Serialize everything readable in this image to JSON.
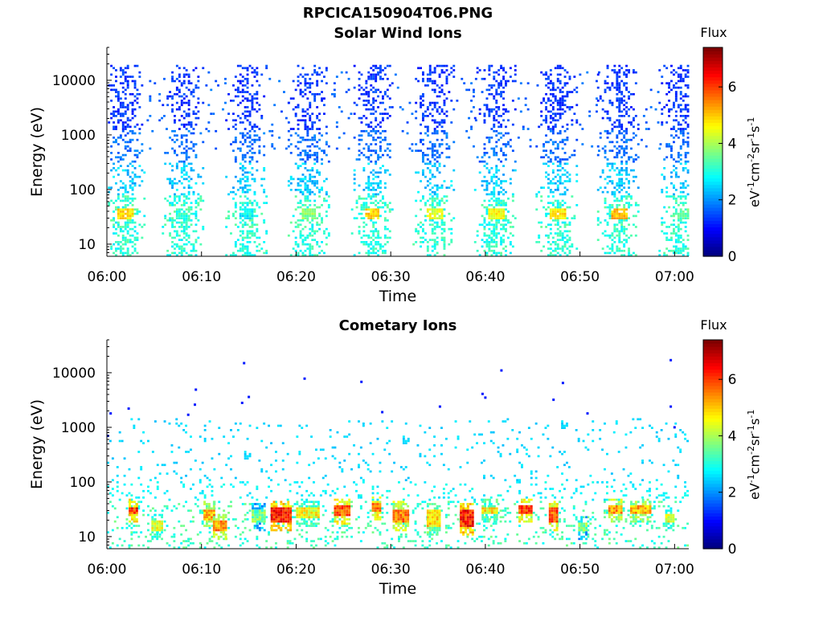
{
  "figure": {
    "title": "RPCICA150904T06.PNG",
    "colorbar": {
      "label": "Flux",
      "unit_parts": [
        "eV",
        "-1",
        "cm",
        "-2",
        "sr",
        "-1",
        "s",
        "-1"
      ],
      "ticks": [
        "0",
        "2",
        "4",
        "6"
      ],
      "range": [
        0,
        7.4
      ],
      "colormap": "jet"
    }
  },
  "chart_data": [
    {
      "type": "heatmap",
      "title": "Solar Wind Ions",
      "xlabel": "Time",
      "ylabel": "Energy (eV)",
      "x_ticks": [
        "06:00",
        "06:10",
        "06:20",
        "06:30",
        "06:40",
        "06:50",
        "07:00"
      ],
      "x_range_minutes": [
        0,
        61.5
      ],
      "y_scale": "log",
      "y_ticks": [
        "10",
        "100",
        "1000",
        "10000"
      ],
      "y_range": [
        6,
        40000
      ],
      "scan_centers_minutes": [
        1.8,
        8.0,
        14.7,
        21.3,
        28.0,
        34.5,
        41.0,
        47.5,
        54.0,
        60.5
      ],
      "band_energies_ev": [
        35,
        40
      ],
      "band_peak_flux": [
        5.2,
        3.5,
        3.2,
        4.2,
        5.3,
        4.8,
        5.0,
        5.2,
        5.5,
        3.8
      ],
      "high_energy_range_ev": [
        300,
        20000
      ]
    },
    {
      "type": "heatmap",
      "title": "Cometary Ions",
      "xlabel": "Time",
      "ylabel": "Energy (eV)",
      "x_ticks": [
        "06:00",
        "06:10",
        "06:20",
        "06:30",
        "06:40",
        "06:50",
        "07:00"
      ],
      "x_range_minutes": [
        0,
        61.5
      ],
      "y_scale": "log",
      "y_ticks": [
        "10",
        "100",
        "1000",
        "10000"
      ],
      "y_range": [
        6,
        40000
      ],
      "bursts": [
        {
          "t": [
            2.3,
            3.3
          ],
          "e": [
            25,
            35
          ],
          "peak": 6.8
        },
        {
          "t": [
            4.7,
            5.8
          ],
          "e": [
            12,
            19
          ],
          "peak": 5.0
        },
        {
          "t": [
            10.2,
            11.3
          ],
          "e": [
            19,
            32
          ],
          "peak": 5.8
        },
        {
          "t": [
            11.2,
            12.5
          ],
          "e": [
            12,
            19
          ],
          "peak": 6.0
        },
        {
          "t": [
            15.3,
            16.7
          ],
          "e": [
            18,
            30
          ],
          "peak": 4.2
        },
        {
          "t": [
            17.3,
            19.4
          ],
          "e": [
            18,
            33
          ],
          "peak": 6.9
        },
        {
          "t": [
            20.0,
            22.5
          ],
          "e": [
            22,
            34
          ],
          "peak": 5.2
        },
        {
          "t": [
            24.0,
            25.7
          ],
          "e": [
            24,
            36
          ],
          "peak": 6.5
        },
        {
          "t": [
            28.0,
            29.0
          ],
          "e": [
            28,
            40
          ],
          "peak": 6.5
        },
        {
          "t": [
            30.2,
            31.8
          ],
          "e": [
            18,
            32
          ],
          "peak": 6.2
        },
        {
          "t": [
            33.8,
            35.2
          ],
          "e": [
            15,
            30
          ],
          "peak": 5.5
        },
        {
          "t": [
            37.3,
            38.6
          ],
          "e": [
            15,
            30
          ],
          "peak": 6.9
        },
        {
          "t": [
            39.6,
            41.3
          ],
          "e": [
            25,
            35
          ],
          "peak": 5.3
        },
        {
          "t": [
            43.5,
            44.8
          ],
          "e": [
            26,
            38
          ],
          "peak": 6.6
        },
        {
          "t": [
            46.7,
            47.7
          ],
          "e": [
            18,
            34
          ],
          "peak": 6.5
        },
        {
          "t": [
            49.8,
            50.6
          ],
          "e": [
            12,
            18
          ],
          "peak": 4.3
        },
        {
          "t": [
            53.0,
            54.5
          ],
          "e": [
            26,
            36
          ],
          "peak": 6.0
        },
        {
          "t": [
            55.3,
            57.5
          ],
          "e": [
            26,
            36
          ],
          "peak": 5.8
        },
        {
          "t": [
            59.0,
            60.0
          ],
          "e": [
            18,
            25
          ],
          "peak": 5.0
        }
      ],
      "sparse_range_ev": [
        100,
        1500
      ],
      "isolated_points": [
        {
          "t": 0.1,
          "e": 700
        },
        {
          "t": 0.4,
          "e": 1800
        },
        {
          "t": 2.3,
          "e": 2200
        },
        {
          "t": 9.4,
          "e": 4900
        },
        {
          "t": 9.3,
          "e": 2600
        },
        {
          "t": 8.6,
          "e": 1700
        },
        {
          "t": 14.5,
          "e": 15000
        },
        {
          "t": 15.0,
          "e": 3600
        },
        {
          "t": 14.3,
          "e": 2800
        },
        {
          "t": 20.9,
          "e": 7800
        },
        {
          "t": 26.9,
          "e": 6800
        },
        {
          "t": 29.1,
          "e": 1900
        },
        {
          "t": 35.2,
          "e": 2400
        },
        {
          "t": 39.7,
          "e": 4100
        },
        {
          "t": 41.7,
          "e": 11000
        },
        {
          "t": 40.0,
          "e": 3500
        },
        {
          "t": 47.2,
          "e": 3200
        },
        {
          "t": 48.2,
          "e": 6500
        },
        {
          "t": 50.8,
          "e": 1800
        },
        {
          "t": 59.6,
          "e": 17000
        },
        {
          "t": 59.6,
          "e": 2400
        },
        {
          "t": 60.0,
          "e": 1000
        }
      ]
    }
  ]
}
